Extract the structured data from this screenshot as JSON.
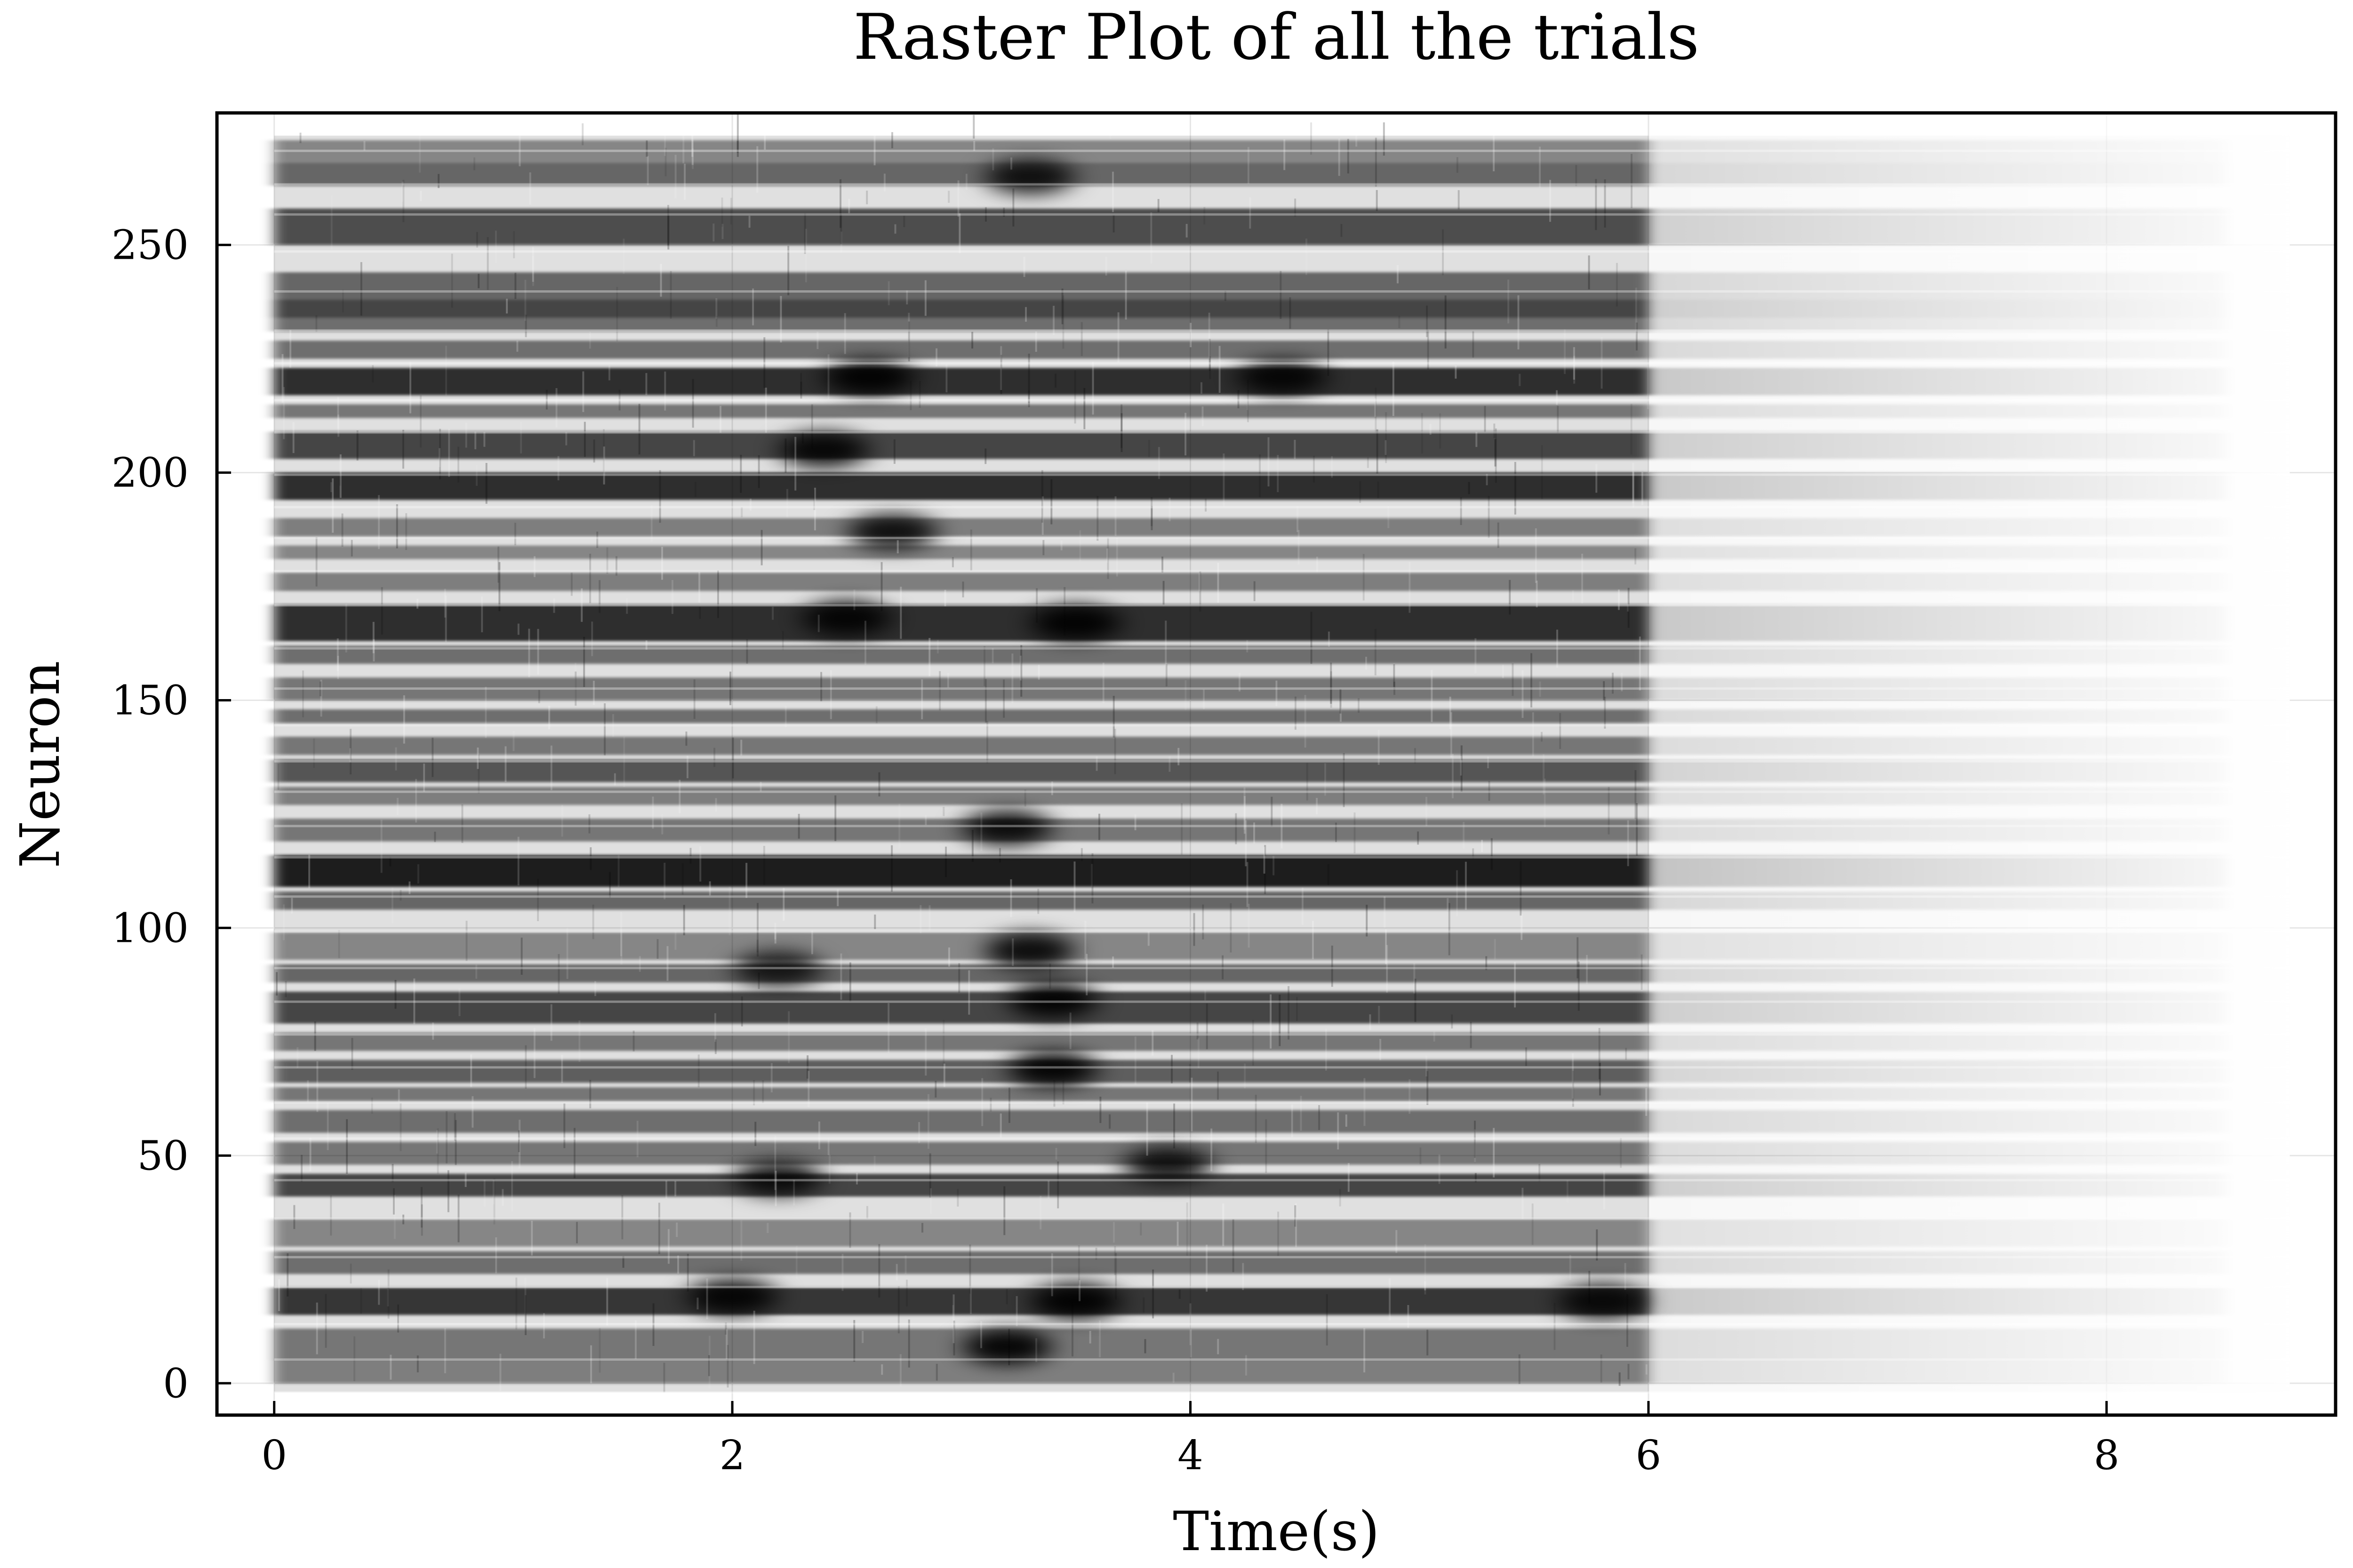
{
  "chart_data": {
    "type": "heatmap",
    "title": "Raster Plot of all the trials",
    "xlabel": "Time(s)",
    "ylabel": "Neuron",
    "xlim": [
      -0.25,
      9.0
    ],
    "ylim": [
      -7,
      279
    ],
    "x_ticks": [
      0,
      2,
      4,
      6,
      8
    ],
    "y_ticks": [
      0,
      50,
      100,
      150,
      200,
      250
    ],
    "grid": true,
    "colormap": "grayscale (white = no spikes, black = dense spikes)",
    "x_data_range": [
      0,
      8.8
    ],
    "neuron_range": [
      -2,
      274
    ],
    "active_period_end": 6.0,
    "band_activity": [
      {
        "neurons": [
          0,
          5
        ],
        "level": 0.4
      },
      {
        "neurons": [
          5,
          12
        ],
        "level": 0.45
      },
      {
        "neurons": [
          15,
          21
        ],
        "level": 0.85
      },
      {
        "neurons": [
          24,
          29
        ],
        "level": 0.5
      },
      {
        "neurons": [
          30,
          36
        ],
        "level": 0.35
      },
      {
        "neurons": [
          41,
          46
        ],
        "level": 0.75
      },
      {
        "neurons": [
          48,
          53
        ],
        "level": 0.45
      },
      {
        "neurons": [
          55,
          60
        ],
        "level": 0.5
      },
      {
        "neurons": [
          62,
          65
        ],
        "level": 0.45
      },
      {
        "neurons": [
          66,
          71
        ],
        "level": 0.6
      },
      {
        "neurons": [
          73,
          77
        ],
        "level": 0.45
      },
      {
        "neurons": [
          79,
          86
        ],
        "level": 0.75
      },
      {
        "neurons": [
          88,
          92
        ],
        "level": 0.55
      },
      {
        "neurons": [
          93,
          99
        ],
        "level": 0.35
      },
      {
        "neurons": [
          104,
          108
        ],
        "level": 0.55
      },
      {
        "neurons": [
          109,
          116
        ],
        "level": 1.0
      },
      {
        "neurons": [
          119,
          124
        ],
        "level": 0.45
      },
      {
        "neurons": [
          127,
          131
        ],
        "level": 0.4
      },
      {
        "neurons": [
          132,
          137
        ],
        "level": 0.65
      },
      {
        "neurons": [
          138,
          142
        ],
        "level": 0.45
      },
      {
        "neurons": [
          145,
          148
        ],
        "level": 0.5
      },
      {
        "neurons": [
          150,
          155
        ],
        "level": 0.45
      },
      {
        "neurons": [
          158,
          162
        ],
        "level": 0.5
      },
      {
        "neurons": [
          163,
          171
        ],
        "level": 0.9
      },
      {
        "neurons": [
          174,
          178
        ],
        "level": 0.4
      },
      {
        "neurons": [
          181,
          184
        ],
        "level": 0.35
      },
      {
        "neurons": [
          186,
          190
        ],
        "level": 0.4
      },
      {
        "neurons": [
          194,
          200
        ],
        "level": 0.9
      },
      {
        "neurons": [
          203,
          209
        ],
        "level": 0.75
      },
      {
        "neurons": [
          212,
          215
        ],
        "level": 0.45
      },
      {
        "neurons": [
          217,
          223
        ],
        "level": 0.9
      },
      {
        "neurons": [
          225,
          229
        ],
        "level": 0.5
      },
      {
        "neurons": [
          231,
          234
        ],
        "level": 0.5
      },
      {
        "neurons": [
          234,
          238
        ],
        "level": 0.75
      },
      {
        "neurons": [
          238,
          244
        ],
        "level": 0.55
      },
      {
        "neurons": [
          250,
          258
        ],
        "level": 0.7
      },
      {
        "neurons": [
          263,
          268
        ],
        "level": 0.55
      },
      {
        "neurons": [
          268,
          273
        ],
        "level": 0.35
      }
    ],
    "hotspots": [
      {
        "t": 3.2,
        "neuron": 8,
        "level": 1.0
      },
      {
        "t": 3.5,
        "neuron": 18,
        "level": 1.0
      },
      {
        "t": 2.0,
        "neuron": 19,
        "level": 0.9
      },
      {
        "t": 5.8,
        "neuron": 18,
        "level": 0.8
      },
      {
        "t": 2.2,
        "neuron": 45,
        "level": 0.8
      },
      {
        "t": 3.9,
        "neuron": 48,
        "level": 0.85
      },
      {
        "t": 3.4,
        "neuron": 69,
        "level": 1.0
      },
      {
        "t": 3.4,
        "neuron": 84,
        "level": 1.0
      },
      {
        "t": 3.3,
        "neuron": 95,
        "level": 0.9
      },
      {
        "t": 2.2,
        "neuron": 91,
        "level": 0.7
      },
      {
        "t": 3.2,
        "neuron": 122,
        "level": 0.9
      },
      {
        "t": 3.5,
        "neuron": 167,
        "level": 1.0
      },
      {
        "t": 2.5,
        "neuron": 168,
        "level": 0.9
      },
      {
        "t": 2.7,
        "neuron": 187,
        "level": 0.85
      },
      {
        "t": 2.4,
        "neuron": 205,
        "level": 0.9
      },
      {
        "t": 2.6,
        "neuron": 221,
        "level": 1.0
      },
      {
        "t": 4.4,
        "neuron": 221,
        "level": 0.85
      },
      {
        "t": 3.3,
        "neuron": 265,
        "level": 0.8
      }
    ]
  }
}
